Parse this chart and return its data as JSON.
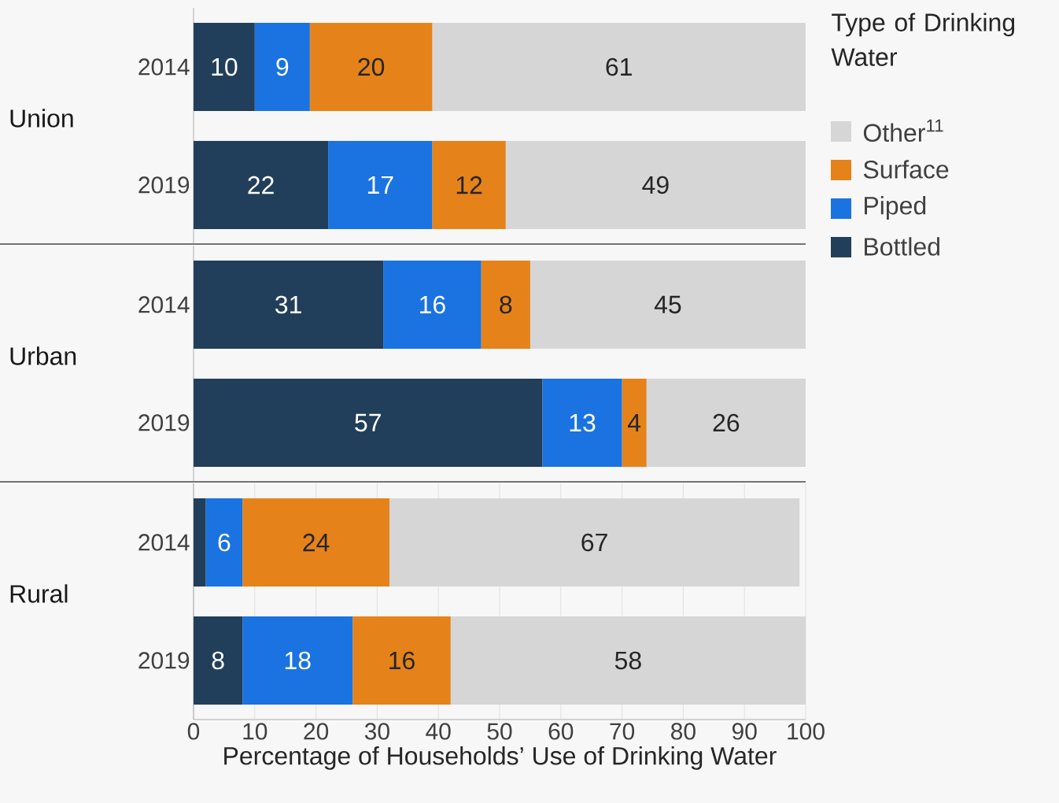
{
  "chart_data": [
    {
      "type": "bar",
      "orientation": "horizontal",
      "stacked": true,
      "title": "Union",
      "categories": [
        "2014",
        "2019"
      ],
      "legend": "right",
      "legend_title": "Type of Drinking Water",
      "xlim": [
        0,
        100
      ],
      "xticks": [
        0,
        10,
        20,
        30,
        40,
        50,
        60,
        70,
        80,
        90,
        100
      ],
      "grid": "x",
      "tick_labels": "y",
      "series": [
        {
          "name": "Bottled",
          "color": "#213f5a",
          "values": [
            10,
            22
          ],
          "value_labels": [
            "10",
            "22"
          ]
        },
        {
          "name": "Piped",
          "color": "#1a73e0",
          "values": [
            9,
            17
          ],
          "value_labels": [
            "9",
            "17"
          ]
        },
        {
          "name": "Surface",
          "color": "#e5831a",
          "values": [
            20,
            12
          ],
          "value_labels": [
            "20",
            "12"
          ]
        },
        {
          "name": "Other$^{11}$",
          "color": "#d6d6d6",
          "values": [
            61,
            49
          ],
          "value_labels": [
            "61",
            "49"
          ]
        }
      ]
    },
    {
      "type": "bar",
      "orientation": "horizontal",
      "stacked": true,
      "title": "Urban",
      "categories": [
        "2014",
        "2019"
      ],
      "xlim": [
        0,
        100
      ],
      "xticks": [
        0,
        10,
        20,
        30,
        40,
        50,
        60,
        70,
        80,
        90,
        100
      ],
      "grid": "x",
      "tick_labels": "y",
      "series": [
        {
          "color": "#213f5a",
          "values": [
            31,
            57
          ],
          "value_labels": [
            "31",
            "57"
          ]
        },
        {
          "color": "#1a73e0",
          "values": [
            16,
            13
          ],
          "value_labels": [
            "16",
            "13"
          ]
        },
        {
          "color": "#e5831a",
          "values": [
            8,
            4
          ],
          "value_labels": [
            "8",
            "4"
          ]
        },
        {
          "color": "#d6d6d6",
          "values": [
            45,
            26
          ],
          "value_labels": [
            "45",
            "26"
          ]
        }
      ]
    },
    {
      "type": "bar",
      "orientation": "horizontal",
      "stacked": true,
      "title": "Rural",
      "categories": [
        "2014",
        "2019"
      ],
      "xlabel": "Percentage of Households’ Use of Drinking Water",
      "xlim": [
        0,
        100
      ],
      "xticks": [
        0,
        10,
        20,
        30,
        40,
        50,
        60,
        70,
        80,
        90,
        100
      ],
      "grid": "x",
      "series": [
        {
          "color": "#213f5a",
          "values": [
            2,
            8
          ],
          "value_labels": [
            null,
            "8"
          ]
        },
        {
          "color": "#1a73e0",
          "values": [
            6,
            18
          ],
          "value_labels": [
            "6",
            "18"
          ]
        },
        {
          "color": "#e5831a",
          "values": [
            24,
            16
          ],
          "value_labels": [
            "24",
            "16"
          ]
        },
        {
          "color": "#d6d6d6",
          "values": [
            67,
            58
          ],
          "value_labels": [
            "67",
            "58"
          ]
        }
      ]
    }
  ]
}
